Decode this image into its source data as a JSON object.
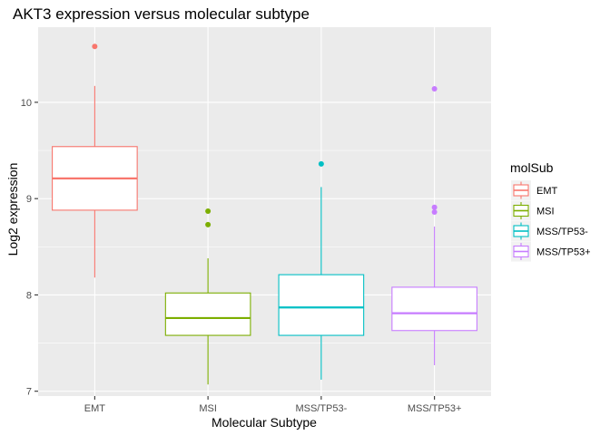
{
  "chart_data": {
    "type": "box",
    "title": "AKT3 expression versus molecular subtype",
    "xlabel": "Molecular Subtype",
    "ylabel": "Log2 expression",
    "categories": [
      "EMT",
      "MSI",
      "MSS/TP53-",
      "MSS/TP53+"
    ],
    "ylim": [
      6.95,
      10.78
    ],
    "yticks": [
      7,
      8,
      9,
      10
    ],
    "ytick_labels": [
      "7",
      "8",
      "9",
      "10"
    ],
    "grid": true,
    "legend": {
      "title": "molSub",
      "position": "right",
      "entries": [
        "EMT",
        "MSI",
        "MSS/TP53-",
        "MSS/TP53+"
      ]
    },
    "colors": [
      "#F8766D",
      "#7CAE00",
      "#00BFC4",
      "#C77CFF"
    ],
    "panel_background": "#EBEBEB",
    "boxes": [
      {
        "category": "EMT",
        "whisker_low": 8.18,
        "q1": 8.88,
        "median": 9.21,
        "q3": 9.54,
        "whisker_high": 10.17,
        "outliers": [
          10.58
        ]
      },
      {
        "category": "MSI",
        "whisker_low": 7.07,
        "q1": 7.58,
        "median": 7.76,
        "q3": 8.02,
        "whisker_high": 8.38,
        "outliers": [
          8.73,
          8.87
        ]
      },
      {
        "category": "MSS/TP53-",
        "whisker_low": 7.12,
        "q1": 7.58,
        "median": 7.87,
        "q3": 8.21,
        "whisker_high": 9.12,
        "outliers": [
          9.36
        ]
      },
      {
        "category": "MSS/TP53+",
        "whisker_low": 7.27,
        "q1": 7.63,
        "median": 7.81,
        "q3": 8.08,
        "whisker_high": 8.71,
        "outliers": [
          8.86,
          8.91,
          10.14
        ]
      }
    ]
  }
}
